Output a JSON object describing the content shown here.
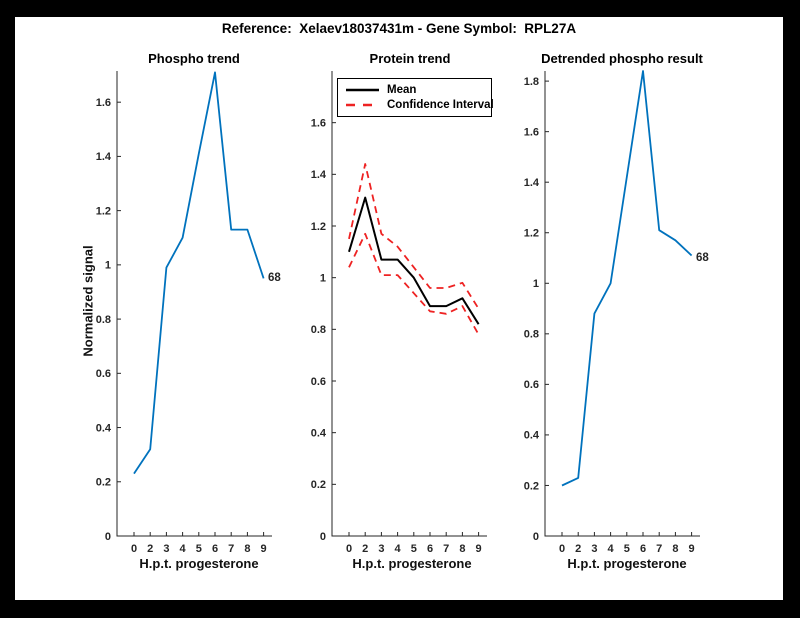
{
  "figure": {
    "title": "Reference:  Xelaev18037431m - Gene Symbol:  RPL27A",
    "background": "#ffffff",
    "border_color": "#000000",
    "axis_color": "#262626",
    "accent_blue": "#0072BD",
    "accent_red": "#EE2222"
  },
  "chart_data": [
    {
      "type": "line",
      "title": "Phospho trend",
      "xlabel": "H.p.t. progesterone",
      "ylabel": "Normalized signal",
      "x_ticks": [
        "0",
        "2",
        "3",
        "4",
        "5",
        "6",
        "7",
        "8",
        "9"
      ],
      "y_ticks": [
        "0",
        "0.2",
        "0.4",
        "0.6",
        "0.8",
        "1",
        "1.2",
        "1.4",
        "1.6"
      ],
      "ylim": [
        0,
        1.715
      ],
      "grid": false,
      "end_label": "68",
      "series": [
        {
          "name": "Phospho trend",
          "color": "#0072BD",
          "dash": "solid",
          "width": 1.8,
          "x": [
            0,
            2,
            3,
            4,
            5,
            6,
            7,
            8,
            9
          ],
          "values": [
            0.23,
            0.32,
            0.99,
            1.1,
            1.41,
            1.71,
            1.13,
            1.13,
            0.95
          ]
        }
      ]
    },
    {
      "type": "line",
      "title": "Protein trend",
      "xlabel": "H.p.t. progesterone",
      "ylabel": "",
      "x_ticks": [
        "0",
        "2",
        "3",
        "4",
        "5",
        "6",
        "7",
        "8",
        "9"
      ],
      "y_ticks": [
        "0",
        "0.2",
        "0.4",
        "0.6",
        "0.8",
        "1",
        "1.2",
        "1.4",
        "1.6"
      ],
      "ylim": [
        0,
        1.8
      ],
      "grid": false,
      "legend": {
        "position": "northwest",
        "entries": [
          {
            "label": "Mean",
            "color": "#000000",
            "dash": "solid"
          },
          {
            "label": "Confidence Interval",
            "color": "#EE2222",
            "dash": "dashed"
          }
        ]
      },
      "series": [
        {
          "name": "Mean",
          "color": "#000000",
          "dash": "solid",
          "width": 2,
          "x": [
            0,
            2,
            3,
            4,
            5,
            6,
            7,
            8,
            9
          ],
          "values": [
            1.1,
            1.31,
            1.07,
            1.07,
            1.0,
            0.89,
            0.89,
            0.92,
            0.82
          ]
        },
        {
          "name": "Confidence Interval upper",
          "color": "#EE2222",
          "dash": "dashed",
          "width": 1.8,
          "x": [
            0,
            2,
            3,
            4,
            5,
            6,
            7,
            8,
            9
          ],
          "values": [
            1.15,
            1.44,
            1.17,
            1.12,
            1.04,
            0.96,
            0.96,
            0.98,
            0.88
          ]
        },
        {
          "name": "Confidence Interval lower",
          "color": "#EE2222",
          "dash": "dashed",
          "width": 1.8,
          "x": [
            0,
            2,
            3,
            4,
            5,
            6,
            7,
            8,
            9
          ],
          "values": [
            1.04,
            1.17,
            1.01,
            1.01,
            0.94,
            0.87,
            0.86,
            0.89,
            0.78
          ]
        }
      ]
    },
    {
      "type": "line",
      "title": "Detrended phospho result",
      "xlabel": "H.p.t. progesterone",
      "ylabel": "",
      "x_ticks": [
        "0",
        "2",
        "3",
        "4",
        "5",
        "6",
        "7",
        "8",
        "9"
      ],
      "y_ticks": [
        "0",
        "0.2",
        "0.4",
        "0.6",
        "0.8",
        "1",
        "1.2",
        "1.4",
        "1.6",
        "1.8"
      ],
      "ylim": [
        0,
        1.84
      ],
      "grid": false,
      "end_label": "68",
      "series": [
        {
          "name": "Detrended phospho result",
          "color": "#0072BD",
          "dash": "solid",
          "width": 1.8,
          "x": [
            0,
            2,
            3,
            4,
            5,
            6,
            7,
            8,
            9
          ],
          "values": [
            0.2,
            0.23,
            0.88,
            1.0,
            1.42,
            1.84,
            1.21,
            1.17,
            1.11
          ]
        }
      ]
    }
  ]
}
